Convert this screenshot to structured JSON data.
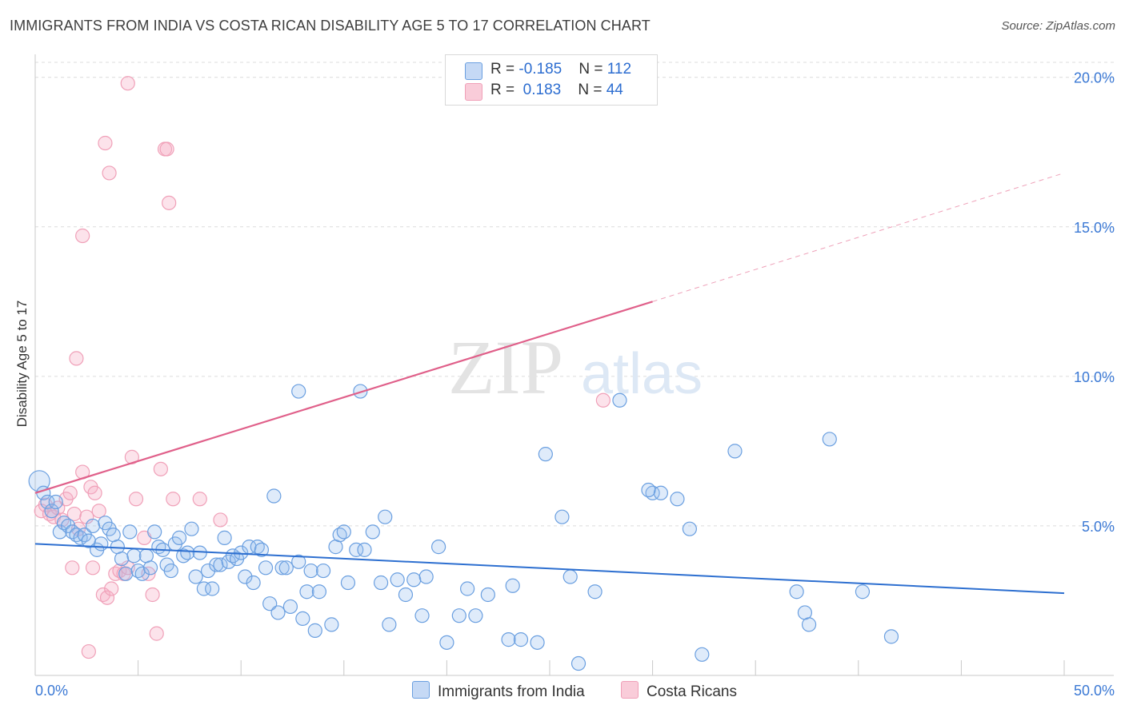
{
  "title": "IMMIGRANTS FROM INDIA VS COSTA RICAN DISABILITY AGE 5 TO 17 CORRELATION CHART",
  "source": "Source: ZipAtlas.com",
  "watermark": {
    "zip": "ZIP",
    "atlas": "atlas"
  },
  "legend": {
    "rows": [
      {
        "r_label": "R = ",
        "r_value": "-0.185",
        "n_label": "N = ",
        "n_value": "112"
      },
      {
        "r_label": "R = ",
        "r_value": " 0.183",
        "n_label": "N = ",
        "n_value": "44"
      }
    ]
  },
  "bottom_legend": {
    "india": "Immigrants from India",
    "costa": "Costa Ricans"
  },
  "chart_data": {
    "type": "scatter",
    "title": "IMMIGRANTS FROM INDIA VS COSTA RICAN DISABILITY AGE 5 TO 17 CORRELATION CHART",
    "xlabel": "",
    "ylabel": "Disability Age 5 to 17",
    "xlim": [
      0,
      50
    ],
    "ylim": [
      0,
      20.5
    ],
    "x_tick_labels": [
      "0.0%",
      "50.0%"
    ],
    "y_ticks": [
      5,
      10,
      15,
      20
    ],
    "y_tick_labels": [
      "5.0%",
      "10.0%",
      "15.0%",
      "20.0%"
    ],
    "grid": "horizontal dashed",
    "legend_position": "top-center",
    "colors": {
      "india": "#6a9fe0",
      "india_line": "#2d6fd0",
      "costa": "#f0a0b8",
      "costa_line": "#e0608a"
    },
    "series": [
      {
        "name": "Immigrants from India",
        "R": -0.185,
        "N": 112,
        "trend": {
          "x": [
            0,
            50
          ],
          "y": [
            4.4,
            2.75
          ]
        },
        "points": [
          [
            0.2,
            6.5
          ],
          [
            0.4,
            6.1
          ],
          [
            0.6,
            5.8
          ],
          [
            0.8,
            5.5
          ],
          [
            1,
            5.8
          ],
          [
            1.2,
            4.8
          ],
          [
            1.4,
            5.1
          ],
          [
            1.6,
            5
          ],
          [
            1.8,
            4.8
          ],
          [
            2,
            4.7
          ],
          [
            2.2,
            4.6
          ],
          [
            2.4,
            4.7
          ],
          [
            2.6,
            4.5
          ],
          [
            2.8,
            5
          ],
          [
            3,
            4.2
          ],
          [
            3.2,
            4.4
          ],
          [
            3.4,
            5.1
          ],
          [
            3.6,
            4.9
          ],
          [
            3.8,
            4.7
          ],
          [
            4,
            4.3
          ],
          [
            4.2,
            3.9
          ],
          [
            4.4,
            3.4
          ],
          [
            4.6,
            4.8
          ],
          [
            4.8,
            4.0
          ],
          [
            5,
            3.5
          ],
          [
            5.2,
            3.4
          ],
          [
            5.4,
            4
          ],
          [
            5.6,
            3.6
          ],
          [
            5.8,
            4.8
          ],
          [
            6,
            4.3
          ],
          [
            6.2,
            4.2
          ],
          [
            6.4,
            3.7
          ],
          [
            6.6,
            3.5
          ],
          [
            6.8,
            4.4
          ],
          [
            7,
            4.6
          ],
          [
            7.2,
            4
          ],
          [
            7.4,
            4.1
          ],
          [
            7.6,
            4.9
          ],
          [
            7.8,
            3.3
          ],
          [
            8,
            4.1
          ],
          [
            8.2,
            2.9
          ],
          [
            8.4,
            3.5
          ],
          [
            8.6,
            2.9
          ],
          [
            8.8,
            3.7
          ],
          [
            9,
            3.7
          ],
          [
            9.2,
            4.6
          ],
          [
            9.4,
            3.8
          ],
          [
            9.6,
            4.0
          ],
          [
            9.8,
            3.9
          ],
          [
            10,
            4.1
          ],
          [
            10.2,
            3.3
          ],
          [
            10.4,
            4.3
          ],
          [
            10.6,
            3.1
          ],
          [
            10.8,
            4.3
          ],
          [
            11,
            4.2
          ],
          [
            11.2,
            3.6
          ],
          [
            11.4,
            2.4
          ],
          [
            11.6,
            6
          ],
          [
            11.8,
            2.1
          ],
          [
            12,
            3.6
          ],
          [
            12.2,
            3.6
          ],
          [
            12.4,
            2.3
          ],
          [
            12.8,
            3.8
          ],
          [
            13.0,
            1.9
          ],
          [
            13.2,
            2.8
          ],
          [
            13.4,
            3.5
          ],
          [
            13.6,
            1.5
          ],
          [
            13.8,
            2.8
          ],
          [
            14,
            3.5
          ],
          [
            14.4,
            1.7
          ],
          [
            14.6,
            4.3
          ],
          [
            14.8,
            4.7
          ],
          [
            15,
            4.8
          ],
          [
            15.2,
            3.1
          ],
          [
            15.6,
            4.2
          ],
          [
            16,
            4.2
          ],
          [
            16.4,
            4.8
          ],
          [
            16.8,
            3.1
          ],
          [
            17,
            5.3
          ],
          [
            17.2,
            1.7
          ],
          [
            17.6,
            3.2
          ],
          [
            18,
            2.7
          ],
          [
            18.4,
            3.2
          ],
          [
            18.8,
            2.0
          ],
          [
            19,
            3.3
          ],
          [
            19.6,
            4.3
          ],
          [
            20,
            1.1
          ],
          [
            20.6,
            2.0
          ],
          [
            21,
            2.9
          ],
          [
            21.4,
            2
          ],
          [
            22,
            2.7
          ],
          [
            23,
            1.2
          ],
          [
            23.2,
            3
          ],
          [
            23.6,
            1.2
          ],
          [
            24.4,
            1.1
          ],
          [
            24.8,
            7.4
          ],
          [
            25.6,
            5.3
          ],
          [
            26,
            3.3
          ],
          [
            26.4,
            0.4
          ],
          [
            27.2,
            2.8
          ],
          [
            28.4,
            9.2
          ],
          [
            30,
            6.1
          ],
          [
            30.4,
            6.1
          ],
          [
            31.2,
            5.9
          ],
          [
            31.8,
            4.9
          ],
          [
            32.4,
            0.7
          ],
          [
            34,
            7.5
          ],
          [
            37,
            2.8
          ],
          [
            37.4,
            2.1
          ],
          [
            37.6,
            1.7
          ],
          [
            38.6,
            7.9
          ],
          [
            40.2,
            2.8
          ],
          [
            41.6,
            1.3
          ],
          [
            12.8,
            9.5
          ],
          [
            15.8,
            9.5
          ],
          [
            29.8,
            6.2
          ]
        ]
      },
      {
        "name": "Costa Ricans",
        "R": 0.183,
        "N": 44,
        "trend": {
          "x": [
            0,
            30
          ],
          "y": [
            6.1,
            12.5
          ]
        },
        "trend_extension": {
          "x": [
            30,
            50
          ],
          "y": [
            12.5,
            16.8
          ]
        },
        "points": [
          [
            0.3,
            5.5
          ],
          [
            0.5,
            5.7
          ],
          [
            0.7,
            5.4
          ],
          [
            0.9,
            5.3
          ],
          [
            1.1,
            5.6
          ],
          [
            1.3,
            5.2
          ],
          [
            1.5,
            5.9
          ],
          [
            1.7,
            6.1
          ],
          [
            1.9,
            5.4
          ],
          [
            2.1,
            4.9
          ],
          [
            2.3,
            6.8
          ],
          [
            2.5,
            5.3
          ],
          [
            2.7,
            6.3
          ],
          [
            2.9,
            6.1
          ],
          [
            3.1,
            5.5
          ],
          [
            3.3,
            2.7
          ],
          [
            3.5,
            2.6
          ],
          [
            3.7,
            2.9
          ],
          [
            3.9,
            3.4
          ],
          [
            4.1,
            3.5
          ],
          [
            4.3,
            3.4
          ],
          [
            4.5,
            3.6
          ],
          [
            4.7,
            7.3
          ],
          [
            4.9,
            5.9
          ],
          [
            5.3,
            4.6
          ],
          [
            5.5,
            3.4
          ],
          [
            5.7,
            2.7
          ],
          [
            5.9,
            1.4
          ],
          [
            6.1,
            6.9
          ],
          [
            6.3,
            17.6
          ],
          [
            6.5,
            15.8
          ],
          [
            6.7,
            5.9
          ],
          [
            8,
            5.9
          ],
          [
            9,
            5.2
          ],
          [
            2.0,
            10.6
          ],
          [
            2.3,
            14.7
          ],
          [
            3.4,
            17.8
          ],
          [
            3.6,
            16.8
          ],
          [
            4.5,
            19.8
          ],
          [
            6.4,
            17.6
          ],
          [
            2.6,
            0.8
          ],
          [
            1.8,
            3.6
          ],
          [
            2.8,
            3.6
          ],
          [
            27.6,
            9.2
          ]
        ]
      }
    ]
  }
}
